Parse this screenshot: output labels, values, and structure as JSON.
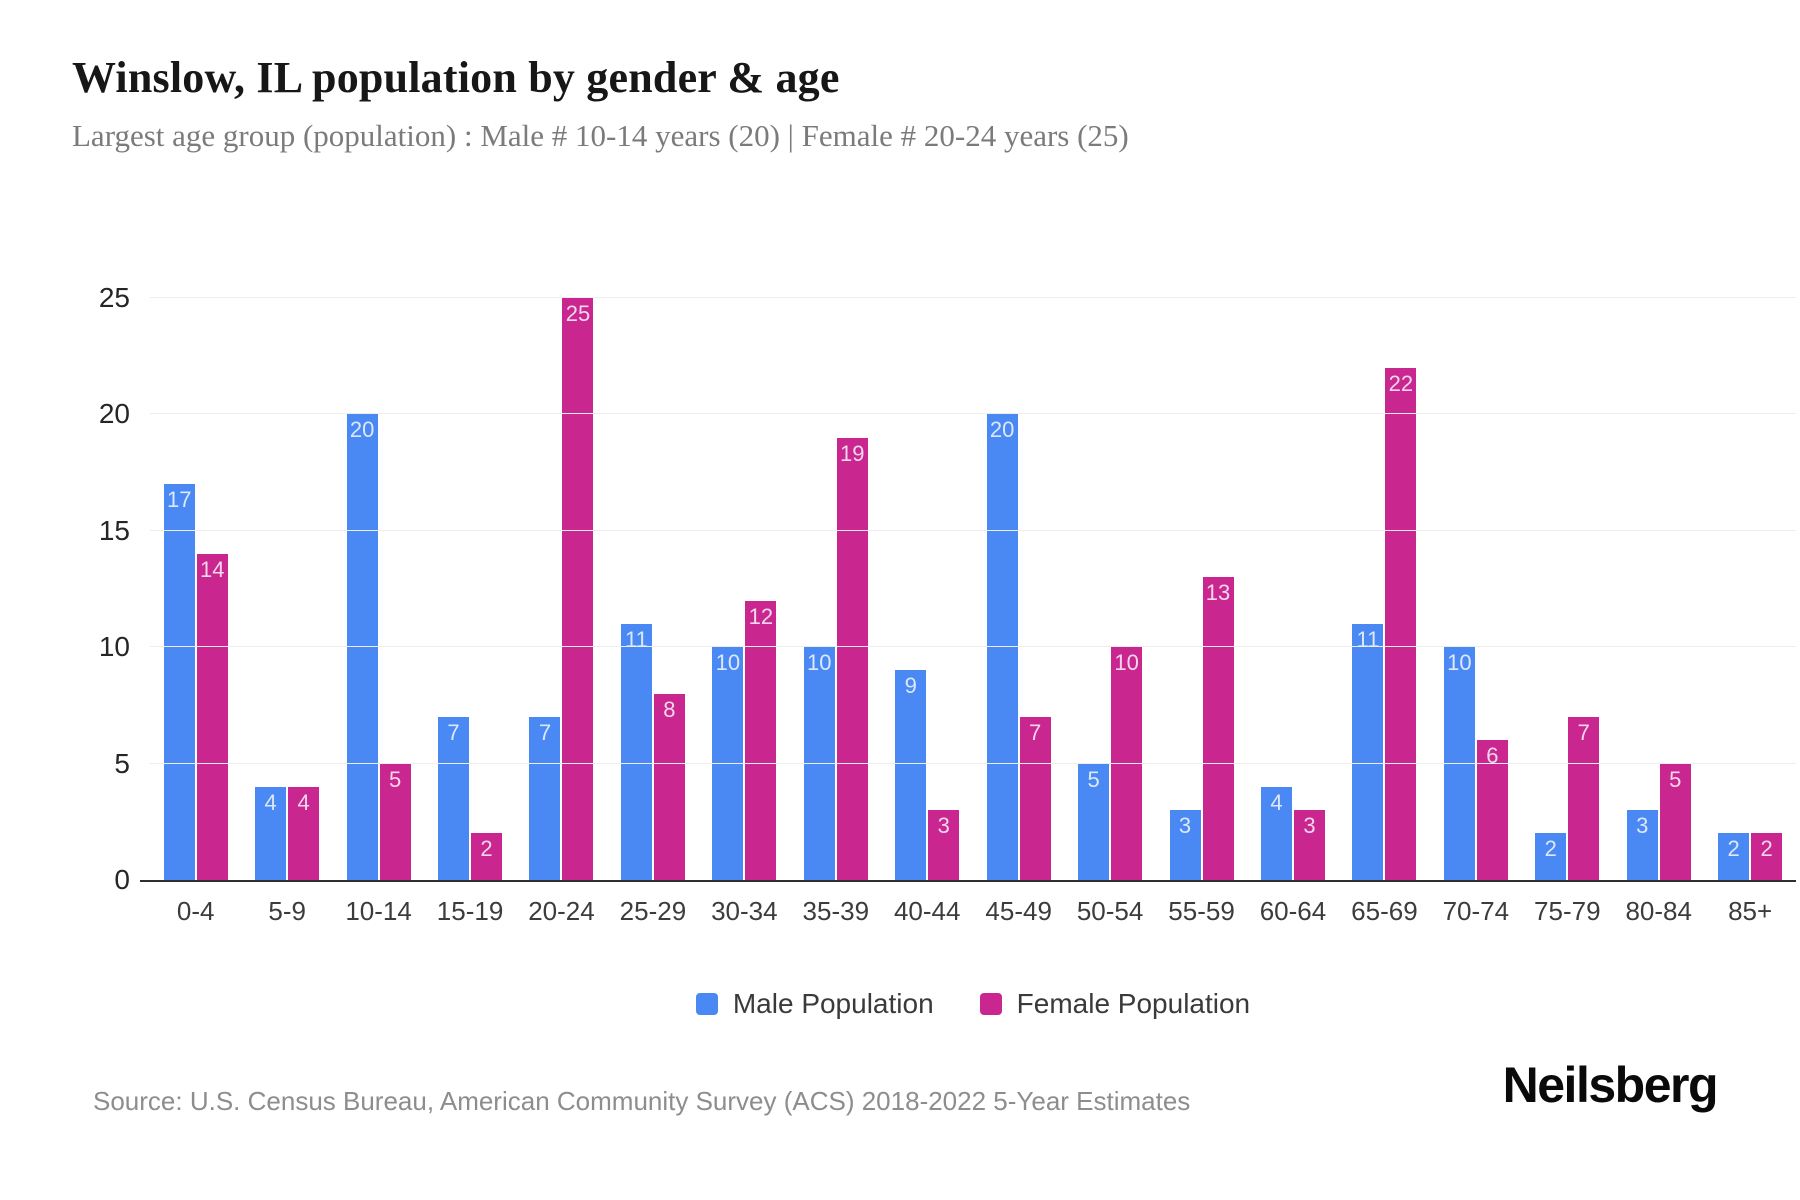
{
  "header": {
    "title": "Winslow, IL population by gender & age",
    "subtitle": "Largest age group (population) : Male # 10-14 years (20) | Female # 20-24 years (25)"
  },
  "chart_data": {
    "type": "bar",
    "title": "Winslow, IL population by gender & age",
    "subtitle": "Largest age group (population) : Male # 10-14 years (20) | Female # 20-24 years (25)",
    "categories": [
      "0-4",
      "5-9",
      "10-14",
      "15-19",
      "20-24",
      "25-29",
      "30-34",
      "35-39",
      "40-44",
      "45-49",
      "50-54",
      "55-59",
      "60-64",
      "65-69",
      "70-74",
      "75-79",
      "80-84",
      "85+"
    ],
    "series": [
      {
        "name": "Male Population",
        "color": "#4a89f4",
        "value_label_color": "#dce8fb",
        "values": [
          17,
          4,
          20,
          7,
          7,
          11,
          10,
          10,
          9,
          20,
          5,
          3,
          4,
          11,
          10,
          2,
          3,
          2
        ]
      },
      {
        "name": "Female Population",
        "color": "#c9278f",
        "value_label_color": "#f4d7ec",
        "values": [
          14,
          4,
          5,
          2,
          25,
          8,
          12,
          19,
          3,
          7,
          10,
          13,
          3,
          22,
          6,
          7,
          5,
          2
        ]
      }
    ],
    "xlabel": "",
    "ylabel": "",
    "ylim": [
      0,
      25
    ],
    "yticks": [
      0,
      5,
      10,
      15,
      20,
      25
    ],
    "grid": "horizontal",
    "legend_position": "bottom",
    "bar_value_labels": "inside-top"
  },
  "footer": {
    "source": "Source: U.S. Census Bureau, American Community Survey (ACS) 2018-2022 5-Year Estimates",
    "brand": "Neilsberg"
  }
}
